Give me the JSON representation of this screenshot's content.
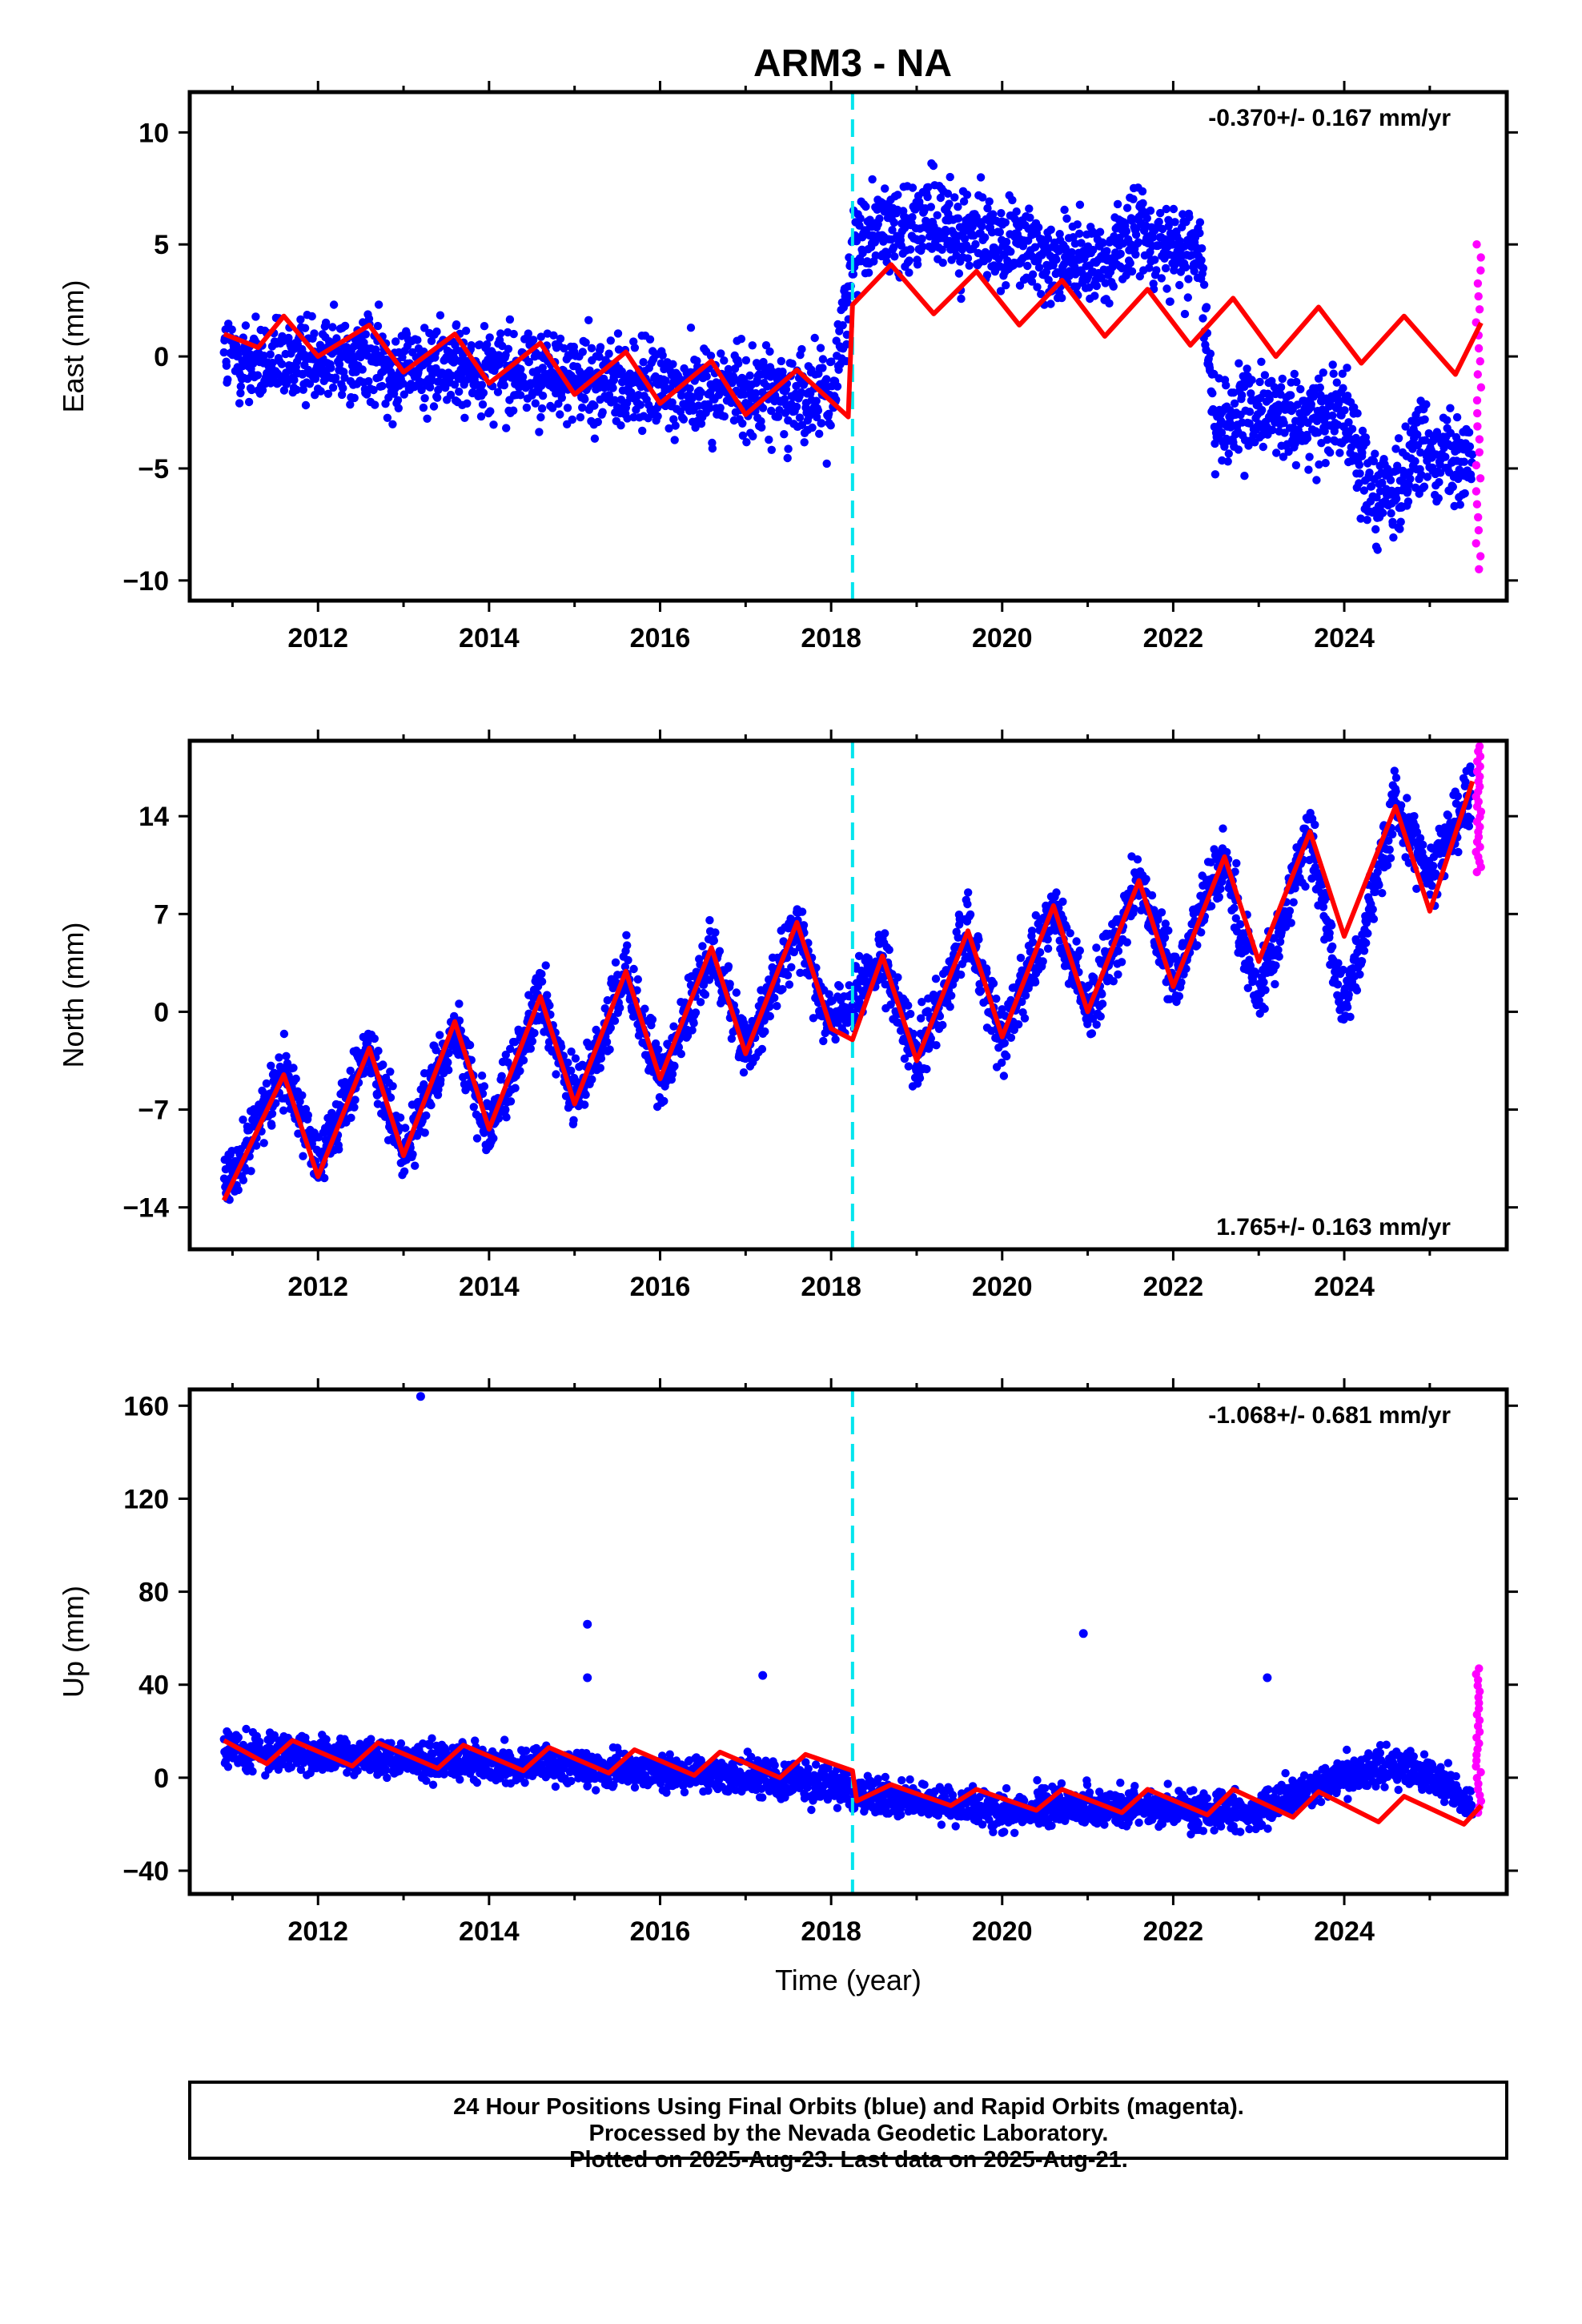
{
  "chart_data": [
    {
      "type": "scatter",
      "title": "ARM3 - NA",
      "ylabel": "East (mm)",
      "xlabel": "",
      "xlim": [
        2010.5,
        2025.9
      ],
      "ylim": [
        -10.9,
        11.8
      ],
      "yticks": [
        -10,
        -5,
        0,
        5,
        10
      ],
      "ytick_labels": [
        "−10",
        "−5",
        "0",
        "5",
        "10"
      ],
      "xticks": [
        2012,
        2014,
        2016,
        2018,
        2020,
        2022,
        2024
      ],
      "xtick_labels": [
        "2012",
        "2014",
        "2016",
        "2018",
        "2020",
        "2022",
        "2024"
      ],
      "rate": "-0.370+/- 0.167 mm/yr",
      "rate_position": "top-right",
      "equipment_change": 2018.25,
      "grid": false,
      "series": [
        {
          "color": "#0000ff",
          "marker": "dot",
          "description_points": [
            [
              2010.9,
              0.0
            ],
            [
              2011.5,
              -0.5
            ],
            [
              2012.0,
              0.2
            ],
            [
              2013.0,
              -0.5
            ],
            [
              2014.0,
              -0.5
            ],
            [
              2015.0,
              -1.0
            ],
            [
              2016.0,
              -1.5
            ],
            [
              2017.0,
              -1.5
            ],
            [
              2018.0,
              -2.0
            ],
            [
              2018.3,
              5.5
            ],
            [
              2019.0,
              6.0
            ],
            [
              2020.0,
              5.0
            ],
            [
              2021.0,
              4.0
            ],
            [
              2021.6,
              5.5
            ],
            [
              2022.3,
              4.5
            ],
            [
              2022.5,
              -3.0
            ],
            [
              2023.0,
              -2.5
            ],
            [
              2023.5,
              -3.0
            ],
            [
              2024.0,
              -2.0
            ],
            [
              2024.3,
              -6.0
            ],
            [
              2024.6,
              -6.5
            ],
            [
              2024.8,
              -4.0
            ],
            [
              2025.5,
              -4.5
            ]
          ]
        },
        {
          "color": "#ff00ff",
          "marker": "dot",
          "description_points": [
            [
              2025.55,
              5.0
            ],
            [
              2025.55,
              2.5
            ],
            [
              2025.56,
              -1.0
            ],
            [
              2025.57,
              -3.0
            ],
            [
              2025.58,
              -5.0
            ],
            [
              2025.58,
              -7.5
            ],
            [
              2025.6,
              -9.5
            ]
          ]
        },
        {
          "color": "#ff0000",
          "marker": "line",
          "description_points": [
            [
              2010.9,
              1.0
            ],
            [
              2011.3,
              0.4
            ],
            [
              2011.6,
              1.8
            ],
            [
              2012.0,
              0.0
            ],
            [
              2012.6,
              1.4
            ],
            [
              2013.0,
              -0.7
            ],
            [
              2013.6,
              1.0
            ],
            [
              2014.0,
              -1.2
            ],
            [
              2014.6,
              0.6
            ],
            [
              2015.0,
              -1.7
            ],
            [
              2015.6,
              0.2
            ],
            [
              2016.0,
              -2.1
            ],
            [
              2016.6,
              -0.2
            ],
            [
              2017.0,
              -2.6
            ],
            [
              2017.6,
              -0.6
            ],
            [
              2018.2,
              -2.7
            ],
            [
              2018.25,
              2.3
            ],
            [
              2018.7,
              4.1
            ],
            [
              2019.2,
              1.9
            ],
            [
              2019.7,
              3.8
            ],
            [
              2020.2,
              1.4
            ],
            [
              2020.7,
              3.4
            ],
            [
              2021.2,
              0.9
            ],
            [
              2021.7,
              3.0
            ],
            [
              2022.2,
              0.5
            ],
            [
              2022.7,
              2.6
            ],
            [
              2023.2,
              0.0
            ],
            [
              2023.7,
              2.2
            ],
            [
              2024.2,
              -0.3
            ],
            [
              2024.7,
              1.8
            ],
            [
              2025.3,
              -0.8
            ],
            [
              2025.6,
              1.5
            ]
          ]
        }
      ]
    },
    {
      "type": "scatter",
      "ylabel": "North (mm)",
      "xlabel": "",
      "xlim": [
        2010.5,
        2025.9
      ],
      "ylim": [
        -17,
        19.4
      ],
      "yticks": [
        -14,
        -7,
        0,
        7,
        14
      ],
      "ytick_labels": [
        "−14",
        "−7",
        "0",
        "7",
        "14"
      ],
      "xticks": [
        2012,
        2014,
        2016,
        2018,
        2020,
        2022,
        2024
      ],
      "xtick_labels": [
        "2012",
        "2014",
        "2016",
        "2018",
        "2020",
        "2022",
        "2024"
      ],
      "rate": "1.765+/- 0.163 mm/yr",
      "rate_position": "bottom-right",
      "equipment_change": 2018.25,
      "grid": false,
      "series": [
        {
          "color": "#0000ff",
          "marker": "dot",
          "description_points": [
            [
              2010.9,
              -12.5
            ],
            [
              2011.6,
              -4.5
            ],
            [
              2012.0,
              -11.0
            ],
            [
              2012.6,
              -2.5
            ],
            [
              2013.0,
              -10.0
            ],
            [
              2013.6,
              -1.0
            ],
            [
              2014.0,
              -8.5
            ],
            [
              2014.6,
              1.0
            ],
            [
              2015.0,
              -6.5
            ],
            [
              2015.6,
              2.5
            ],
            [
              2016.0,
              -5.0
            ],
            [
              2016.6,
              4.5
            ],
            [
              2017.0,
              -3.0
            ],
            [
              2017.6,
              6.0
            ],
            [
              2018.0,
              -1.0
            ],
            [
              2018.6,
              3.5
            ],
            [
              2019.0,
              -3.5
            ],
            [
              2019.6,
              6.0
            ],
            [
              2020.0,
              -2.0
            ],
            [
              2020.6,
              7.5
            ],
            [
              2021.0,
              0.0
            ],
            [
              2021.6,
              9.5
            ],
            [
              2022.0,
              2.0
            ],
            [
              2022.6,
              11.0
            ],
            [
              2023.0,
              1.0
            ],
            [
              2023.6,
              13.0
            ],
            [
              2024.0,
              0.0
            ],
            [
              2024.6,
              15.0
            ],
            [
              2025.0,
              10.0
            ],
            [
              2025.5,
              16.0
            ]
          ]
        },
        {
          "color": "#ff00ff",
          "marker": "dot",
          "description_points": [
            [
              2025.55,
              19.0
            ],
            [
              2025.55,
              16.0
            ],
            [
              2025.57,
              13.0
            ],
            [
              2025.6,
              10.0
            ]
          ]
        },
        {
          "color": "#ff0000",
          "marker": "line",
          "description_points": [
            [
              2010.9,
              -13.5
            ],
            [
              2011.6,
              -4.5
            ],
            [
              2012.0,
              -11.8
            ],
            [
              2012.6,
              -2.6
            ],
            [
              2013.0,
              -10.3
            ],
            [
              2013.6,
              -0.7
            ],
            [
              2014.0,
              -8.4
            ],
            [
              2014.6,
              1.1
            ],
            [
              2015.0,
              -6.6
            ],
            [
              2015.6,
              2.9
            ],
            [
              2016.0,
              -4.8
            ],
            [
              2016.6,
              4.6
            ],
            [
              2017.0,
              -3.0
            ],
            [
              2017.6,
              6.4
            ],
            [
              2018.0,
              -1.2
            ],
            [
              2018.25,
              -2.0
            ],
            [
              2018.6,
              4.0
            ],
            [
              2019.0,
              -3.5
            ],
            [
              2019.6,
              5.8
            ],
            [
              2020.0,
              -1.8
            ],
            [
              2020.6,
              7.6
            ],
            [
              2021.0,
              0.0
            ],
            [
              2021.6,
              9.4
            ],
            [
              2022.0,
              1.8
            ],
            [
              2022.6,
              11.1
            ],
            [
              2023.0,
              3.6
            ],
            [
              2023.6,
              12.9
            ],
            [
              2024.0,
              5.4
            ],
            [
              2024.6,
              14.7
            ],
            [
              2025.0,
              7.2
            ],
            [
              2025.5,
              16.5
            ]
          ]
        }
      ]
    },
    {
      "type": "scatter",
      "ylabel": "Up (mm)",
      "xlabel": "Time (year)",
      "xlim": [
        2010.5,
        2025.9
      ],
      "ylim": [
        -50,
        167
      ],
      "yticks": [
        -40,
        0,
        40,
        80,
        120,
        160
      ],
      "ytick_labels": [
        "−40",
        "0",
        "40",
        "80",
        "120",
        "160"
      ],
      "xticks": [
        2012,
        2014,
        2016,
        2018,
        2020,
        2022,
        2024
      ],
      "xtick_labels": [
        "2012",
        "2014",
        "2016",
        "2018",
        "2020",
        "2022",
        "2024"
      ],
      "rate": "-1.068+/- 0.681 mm/yr",
      "rate_position": "top-right",
      "equipment_change": 2018.25,
      "grid": false,
      "series": [
        {
          "color": "#0000ff",
          "marker": "dot",
          "description_points": [
            [
              2010.9,
              12.0
            ],
            [
              2012.0,
              10.0
            ],
            [
              2013.0,
              8.0
            ],
            [
              2014.0,
              6.0
            ],
            [
              2015.0,
              4.0
            ],
            [
              2016.0,
              2.0
            ],
            [
              2017.0,
              0.0
            ],
            [
              2018.0,
              -2.0
            ],
            [
              2018.3,
              -8.0
            ],
            [
              2019.0,
              -10.0
            ],
            [
              2020.0,
              -14.0
            ],
            [
              2021.0,
              -12.0
            ],
            [
              2022.0,
              -14.0
            ],
            [
              2023.0,
              -15.0
            ],
            [
              2024.0,
              2.0
            ],
            [
              2024.8,
              5.0
            ],
            [
              2025.5,
              -12.0
            ],
            [
              2013.2,
              164.0
            ],
            [
              2015.15,
              66.0
            ],
            [
              2015.15,
              43.0
            ],
            [
              2017.2,
              44.0
            ],
            [
              2020.95,
              62.0
            ],
            [
              2023.1,
              43.0
            ]
          ]
        },
        {
          "color": "#ff00ff",
          "marker": "dot",
          "description_points": [
            [
              2025.55,
              47.0
            ],
            [
              2025.55,
              40.0
            ],
            [
              2025.56,
              30.0
            ],
            [
              2025.57,
              15.0
            ],
            [
              2025.58,
              0.0
            ],
            [
              2025.6,
              -15.0
            ]
          ]
        },
        {
          "color": "#ff0000",
          "marker": "line",
          "description_points": [
            [
              2010.9,
              16.0
            ],
            [
              2011.4,
              6.0
            ],
            [
              2011.7,
              16.0
            ],
            [
              2012.4,
              5.0
            ],
            [
              2012.7,
              15.0
            ],
            [
              2013.4,
              4.0
            ],
            [
              2013.7,
              14.0
            ],
            [
              2014.4,
              3.0
            ],
            [
              2014.7,
              13.0
            ],
            [
              2015.4,
              2.0
            ],
            [
              2015.7,
              12.0
            ],
            [
              2016.4,
              1.0
            ],
            [
              2016.7,
              11.0
            ],
            [
              2017.4,
              0.0
            ],
            [
              2017.7,
              10.0
            ],
            [
              2018.25,
              3.0
            ],
            [
              2018.3,
              -10.0
            ],
            [
              2018.7,
              -3.0
            ],
            [
              2019.4,
              -12.0
            ],
            [
              2019.7,
              -5.0
            ],
            [
              2020.4,
              -14.0
            ],
            [
              2020.7,
              -5.0
            ],
            [
              2021.4,
              -15.0
            ],
            [
              2021.7,
              -5.0
            ],
            [
              2022.4,
              -16.0
            ],
            [
              2022.7,
              -5.0
            ],
            [
              2023.4,
              -17.0
            ],
            [
              2023.7,
              -6.0
            ],
            [
              2024.4,
              -19.0
            ],
            [
              2024.7,
              -8.0
            ],
            [
              2025.4,
              -20.0
            ],
            [
              2025.6,
              -12.0
            ]
          ]
        }
      ]
    }
  ],
  "footer": {
    "line1": "24 Hour Positions Using Final Orbits (blue) and Rapid Orbits (magenta).",
    "line2": "Processed by the Nevada Geodetic Laboratory.",
    "line3": "Plotted on 2025-Aug-23. Last data on 2025-Aug-21."
  },
  "colors": {
    "final_orbits": "#0000ff",
    "rapid_orbits": "#ff00ff",
    "model_fit": "#ff0000",
    "equipment_change": "#00e5ee",
    "frame": "#000000"
  }
}
